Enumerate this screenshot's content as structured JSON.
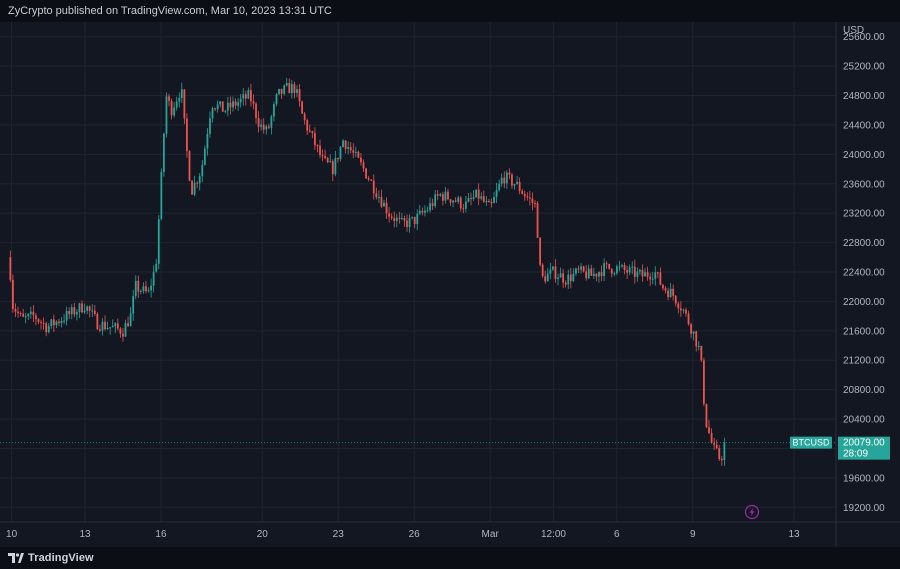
{
  "header": {
    "publisher_line": "ZyCrypto published on TradingView.com, Mar 10, 2023 13:31 UTC"
  },
  "footer": {
    "brand": "TradingView"
  },
  "colors": {
    "background": "#131722",
    "up": "#26a69a",
    "down": "#ef5350",
    "grid": "#1f2430",
    "price_label_bg": "#26a69a",
    "lightning_icon": "#9c27b0"
  },
  "icons": {
    "lightning": "lightning-icon",
    "logo": "tradingview-logo-icon"
  },
  "chart_data": {
    "type": "candlestick",
    "currency_label": "USD",
    "y_ticks": [
      19200,
      19600,
      20000,
      20400,
      20800,
      21200,
      21600,
      22000,
      22400,
      22800,
      23200,
      23600,
      24000,
      24400,
      24800,
      25200,
      25600
    ],
    "y_tick_labels": [
      "19200.00",
      "19600.00",
      "20000.00",
      "20400.00",
      "20800.00",
      "21200.00",
      "21600.00",
      "22000.00",
      "22400.00",
      "22800.00",
      "23200.00",
      "23600.00",
      "24000.00",
      "24400.00",
      "24800.00",
      "25200.00",
      "25600.00"
    ],
    "ylim": [
      19000,
      25800
    ],
    "x_ticks": [
      {
        "label": "10",
        "t": 0.1
      },
      {
        "label": "13",
        "t": 3.0
      },
      {
        "label": "16",
        "t": 6.0
      },
      {
        "label": "20",
        "t": 10.0
      },
      {
        "label": "23",
        "t": 13.0
      },
      {
        "label": "26",
        "t": 16.0
      },
      {
        "label": "Mar",
        "t": 19.0
      },
      {
        "label": "12:00",
        "t": 21.5
      },
      {
        "label": "6",
        "t": 24.0
      },
      {
        "label": "9",
        "t": 27.0
      },
      {
        "label": "13",
        "t": 31.0
      }
    ],
    "xlim": [
      -0.2,
      32.5
    ],
    "last_price": 20079.0,
    "symbol": "BTCUSD",
    "last_price_label": "20079.00",
    "countdown": "28:09",
    "path": [
      [
        0.0,
        22600
      ],
      [
        0.15,
        21950
      ],
      [
        0.5,
        21750
      ],
      [
        1.0,
        21800
      ],
      [
        1.5,
        21650
      ],
      [
        2.0,
        21750
      ],
      [
        2.5,
        21850
      ],
      [
        3.0,
        21950
      ],
      [
        3.5,
        21700
      ],
      [
        4.0,
        21650
      ],
      [
        4.5,
        21600
      ],
      [
        4.8,
        21800
      ],
      [
        5.0,
        22200
      ],
      [
        5.5,
        22100
      ],
      [
        5.8,
        22500
      ],
      [
        6.0,
        23600
      ],
      [
        6.2,
        24800
      ],
      [
        6.4,
        24600
      ],
      [
        6.8,
        24900
      ],
      [
        7.0,
        24100
      ],
      [
        7.2,
        23500
      ],
      [
        7.6,
        23800
      ],
      [
        8.0,
        24700
      ],
      [
        8.5,
        24600
      ],
      [
        9.0,
        24700
      ],
      [
        9.5,
        24800
      ],
      [
        9.9,
        24400
      ],
      [
        10.2,
        24300
      ],
      [
        10.6,
        24800
      ],
      [
        11.0,
        24900
      ],
      [
        11.3,
        24900
      ],
      [
        11.6,
        24500
      ],
      [
        12.0,
        24200
      ],
      [
        12.4,
        23900
      ],
      [
        12.8,
        23800
      ],
      [
        13.2,
        24200
      ],
      [
        13.6,
        24000
      ],
      [
        14.0,
        23800
      ],
      [
        14.5,
        23500
      ],
      [
        15.0,
        23200
      ],
      [
        15.5,
        23050
      ],
      [
        16.0,
        23100
      ],
      [
        16.5,
        23250
      ],
      [
        17.0,
        23450
      ],
      [
        17.5,
        23400
      ],
      [
        18.0,
        23300
      ],
      [
        18.5,
        23450
      ],
      [
        19.0,
        23250
      ],
      [
        19.5,
        23700
      ],
      [
        20.0,
        23600
      ],
      [
        20.5,
        23400
      ],
      [
        20.8,
        23300
      ],
      [
        21.0,
        22300
      ],
      [
        21.5,
        22400
      ],
      [
        22.0,
        22300
      ],
      [
        22.5,
        22400
      ],
      [
        23.0,
        22350
      ],
      [
        23.5,
        22450
      ],
      [
        24.0,
        22450
      ],
      [
        24.5,
        22400
      ],
      [
        25.0,
        22350
      ],
      [
        25.5,
        22400
      ],
      [
        25.8,
        22200
      ],
      [
        26.2,
        22100
      ],
      [
        26.6,
        21900
      ],
      [
        27.0,
        21600
      ],
      [
        27.3,
        21300
      ],
      [
        27.5,
        20400
      ],
      [
        27.8,
        20000
      ],
      [
        28.1,
        19850
      ],
      [
        28.3,
        20079
      ]
    ],
    "volatility": 110
  }
}
